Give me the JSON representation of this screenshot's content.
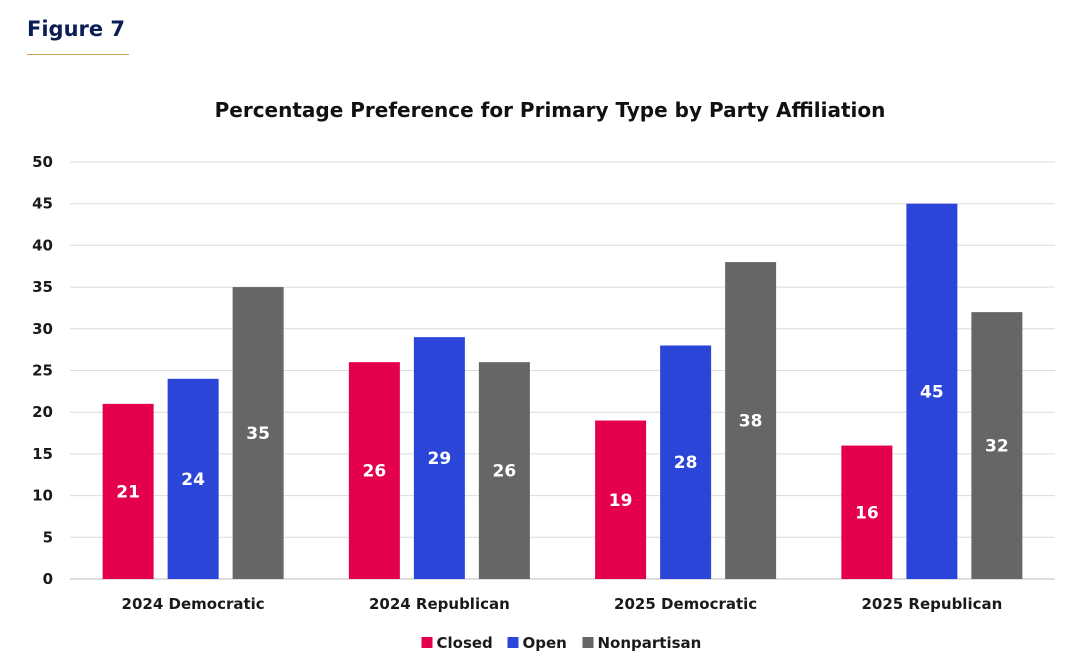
{
  "figure_label": "Figure 7",
  "chart_data": {
    "type": "bar",
    "title": "Percentage Preference for Primary Type by Party Affiliation",
    "xlabel": "",
    "ylabel": "",
    "categories": [
      "2024 Democratic",
      "2024 Republican",
      "2025 Democratic",
      "2025 Republican"
    ],
    "series": [
      {
        "name": "Closed",
        "color": "#e4004b",
        "values": [
          21,
          26,
          19,
          16
        ]
      },
      {
        "name": "Open",
        "color": "#2b45d9",
        "values": [
          24,
          29,
          28,
          45
        ]
      },
      {
        "name": "Nonpartisan",
        "color": "#666666",
        "values": [
          35,
          26,
          38,
          32
        ]
      }
    ],
    "ylim": [
      0,
      50
    ],
    "yticks": [
      0,
      5,
      10,
      15,
      20,
      25,
      30,
      35,
      40,
      45,
      50
    ],
    "grid": true,
    "legend_position": "bottom"
  }
}
